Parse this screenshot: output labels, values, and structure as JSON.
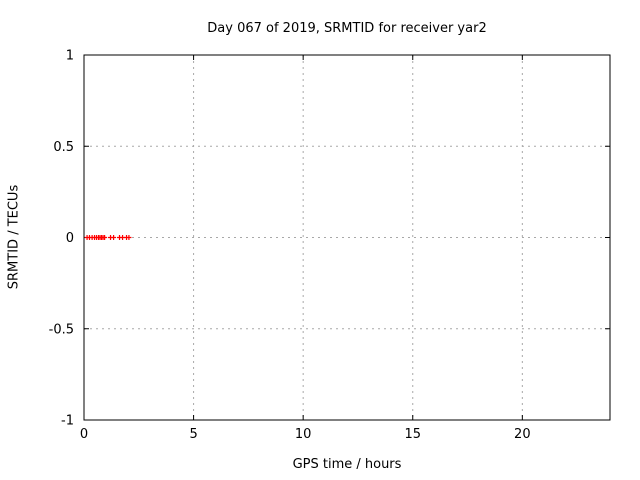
{
  "chart_data": {
    "type": "scatter",
    "title": "Day 067 of 2019, SRMTID for receiver yar2",
    "xlabel": "GPS time / hours",
    "ylabel": "SRMTID / TECUs",
    "xlim": [
      0,
      24
    ],
    "ylim": [
      -1,
      1
    ],
    "xticks": [
      0,
      5,
      10,
      15,
      20
    ],
    "xtick_labels": [
      "0",
      "5",
      "10",
      "15",
      "20"
    ],
    "yticks": [
      -1,
      -0.5,
      0,
      0.5,
      1
    ],
    "ytick_labels": [
      "-1",
      "-0.5",
      "0",
      "0.5",
      "1"
    ],
    "grid": true,
    "legend": "none",
    "marker": "plus",
    "marker_color": "#ff0000",
    "grid_color": "#a8a8a8",
    "border_color": "#000000",
    "series": [
      {
        "name": "SRMTID yar2",
        "x": [
          0.14,
          0.25,
          0.37,
          0.48,
          0.57,
          0.66,
          0.73,
          0.8,
          0.87,
          0.94,
          1.21,
          1.35,
          1.62,
          1.76,
          1.94,
          2.05
        ],
        "y": [
          0,
          0,
          0,
          0,
          0,
          0,
          0,
          0,
          0,
          0,
          0,
          0,
          0,
          0,
          0,
          0
        ]
      }
    ]
  }
}
